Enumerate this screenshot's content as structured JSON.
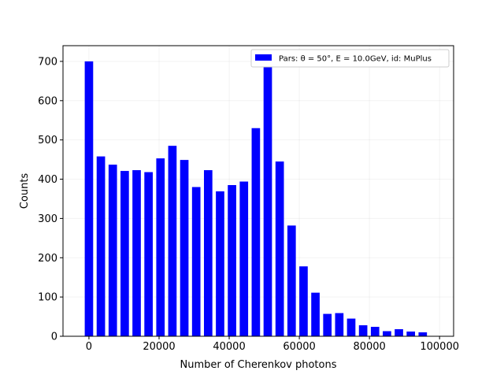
{
  "chart_data": {
    "type": "bar",
    "xlabel": "Number of Cherenkov photons",
    "ylabel": "Counts",
    "xlim": [
      -7400,
      104000
    ],
    "ylim": [
      0,
      740
    ],
    "x_ticks": [
      0,
      20000,
      40000,
      60000,
      80000,
      100000
    ],
    "x_tick_labels": [
      "0",
      "20000",
      "40000",
      "60000",
      "80000",
      "100000"
    ],
    "y_ticks": [
      0,
      100,
      200,
      300,
      400,
      500,
      600,
      700
    ],
    "y_tick_labels": [
      "0",
      "100",
      "200",
      "300",
      "400",
      "500",
      "600",
      "700"
    ],
    "grid": true,
    "legend_position": "top-right",
    "bar_width": 2400,
    "color": "#0000ff",
    "series": [
      {
        "name": "Pars: θ = 50°, E = 10.0GeV, id: MuPlus",
        "x": [
          0,
          3400,
          6800,
          10200,
          13600,
          17000,
          20400,
          23800,
          27200,
          30600,
          34000,
          37400,
          40800,
          44200,
          47600,
          51000,
          54400,
          57800,
          61200,
          64600,
          68000,
          71400,
          74800,
          78200,
          81600,
          85000,
          88400,
          91800,
          95200
        ],
        "values": [
          700,
          458,
          437,
          421,
          423,
          418,
          453,
          485,
          449,
          380,
          423,
          369,
          385,
          394,
          530,
          700,
          445,
          282,
          178,
          111,
          57,
          59,
          45,
          28,
          24,
          13,
          18,
          12,
          10
        ]
      }
    ]
  }
}
